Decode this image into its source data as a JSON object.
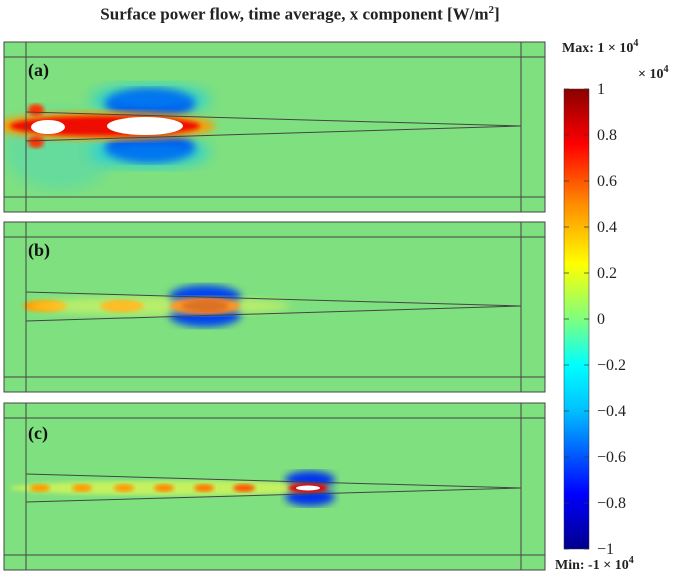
{
  "title_prefix": "Surface power flow, time average, x component [W/m",
  "title_unit_sup": "2",
  "title_suffix": "]",
  "panels": [
    {
      "label": "(a)"
    },
    {
      "label": "(b)"
    },
    {
      "label": "(c)"
    }
  ],
  "colorbar": {
    "max_text": "Max: 1 × 10",
    "max_exp": "4",
    "scale_text": "× 10",
    "scale_exp": "4",
    "min_text": "Min: -1 × 10",
    "min_exp": "4",
    "ticks": [
      "1",
      "0.8",
      "0.6",
      "0.4",
      "0.2",
      "0",
      "−0.2",
      "−0.4",
      "−0.6",
      "−0.8",
      "−1"
    ],
    "tick_values": [
      1,
      0.8,
      0.6,
      0.4,
      0.2,
      0,
      -0.2,
      -0.4,
      -0.6,
      -0.8,
      -1
    ],
    "colormap": [
      "#00008b",
      "#0000ff",
      "#00bfff",
      "#00ffff",
      "#7fff7f",
      "#ffff00",
      "#ff7f00",
      "#ff0000",
      "#8b0000"
    ]
  },
  "colors": {
    "background_field": "#7fe07f",
    "outline": "#444444"
  }
}
